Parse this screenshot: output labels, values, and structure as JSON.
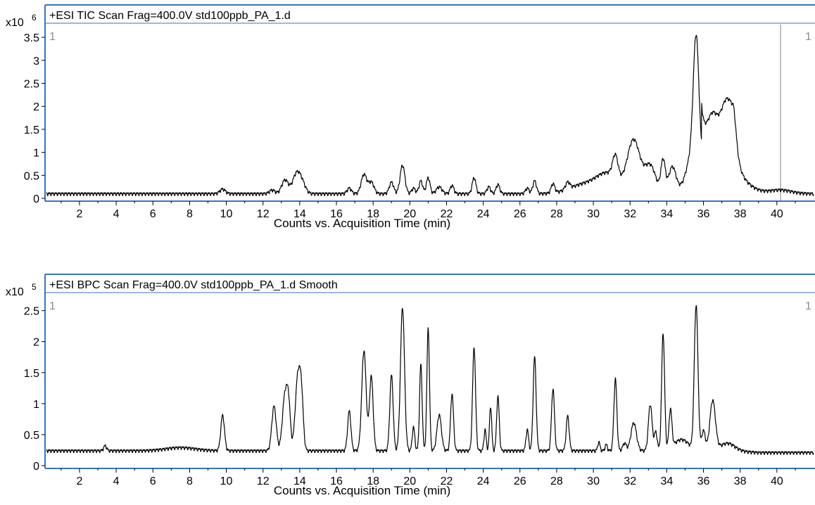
{
  "chart_data": [
    {
      "type": "line",
      "title": "+ESI TIC Scan Frag=400.0V std100ppb_PA_1.d",
      "multiplier_base": "x10",
      "multiplier_exp": "6",
      "xlabel": "Counts vs. Acquisition Time (min)",
      "ylabel": "",
      "xlim": [
        0.2,
        42.0
      ],
      "ylim": [
        0,
        3.7
      ],
      "yticks": [
        0,
        0.5,
        1,
        1.5,
        2,
        2.5,
        3,
        3.5
      ],
      "ytick_labels": [
        "0",
        "0.5",
        "1",
        "1.5",
        "2",
        "2.5",
        "3",
        "3.5"
      ],
      "xticks": [
        2,
        4,
        6,
        8,
        10,
        12,
        14,
        16,
        18,
        20,
        22,
        24,
        26,
        28,
        30,
        32,
        34,
        36,
        38,
        40
      ],
      "xtick_labels": [
        "2",
        "4",
        "6",
        "8",
        "10",
        "12",
        "14",
        "16",
        "18",
        "20",
        "22",
        "24",
        "26",
        "28",
        "30",
        "32",
        "34",
        "36",
        "38",
        "40"
      ],
      "marker_left": "1",
      "marker_right": "1",
      "cursor_x": 40.2,
      "grid": false,
      "baseline": 0.1,
      "peaks": [
        {
          "t": 9.8,
          "h": 0.1,
          "w": 0.15
        },
        {
          "t": 12.5,
          "h": 0.08,
          "w": 0.15
        },
        {
          "t": 13.2,
          "h": 0.3,
          "w": 0.18
        },
        {
          "t": 13.8,
          "h": 0.38,
          "w": 0.2
        },
        {
          "t": 14.1,
          "h": 0.25,
          "w": 0.2
        },
        {
          "t": 16.7,
          "h": 0.12,
          "w": 0.12
        },
        {
          "t": 17.5,
          "h": 0.42,
          "w": 0.15
        },
        {
          "t": 17.9,
          "h": 0.25,
          "w": 0.15
        },
        {
          "t": 19.0,
          "h": 0.25,
          "w": 0.12
        },
        {
          "t": 19.6,
          "h": 0.62,
          "w": 0.13
        },
        {
          "t": 20.2,
          "h": 0.12,
          "w": 0.1
        },
        {
          "t": 20.6,
          "h": 0.28,
          "w": 0.1
        },
        {
          "t": 21.0,
          "h": 0.35,
          "w": 0.1
        },
        {
          "t": 21.6,
          "h": 0.15,
          "w": 0.15
        },
        {
          "t": 22.3,
          "h": 0.18,
          "w": 0.1
        },
        {
          "t": 23.5,
          "h": 0.35,
          "w": 0.1
        },
        {
          "t": 24.3,
          "h": 0.15,
          "w": 0.1
        },
        {
          "t": 24.8,
          "h": 0.2,
          "w": 0.1
        },
        {
          "t": 26.4,
          "h": 0.12,
          "w": 0.1
        },
        {
          "t": 26.8,
          "h": 0.28,
          "w": 0.1
        },
        {
          "t": 27.8,
          "h": 0.2,
          "w": 0.1
        },
        {
          "t": 28.6,
          "h": 0.15,
          "w": 0.12
        },
        {
          "t": 29.5,
          "h": 0.2,
          "w": 0.8
        },
        {
          "t": 30.8,
          "h": 0.4,
          "w": 0.6
        },
        {
          "t": 31.2,
          "h": 0.5,
          "w": 0.15
        },
        {
          "t": 32.2,
          "h": 1.15,
          "w": 0.35
        },
        {
          "t": 33.1,
          "h": 0.6,
          "w": 0.3
        },
        {
          "t": 33.8,
          "h": 0.7,
          "w": 0.12
        },
        {
          "t": 34.3,
          "h": 0.55,
          "w": 0.2
        },
        {
          "t": 35.6,
          "h": 2.55,
          "w": 0.15
        },
        {
          "t": 35.4,
          "h": 0.6,
          "w": 0.3
        },
        {
          "t": 36.8,
          "h": 0.9,
          "w": 1.0
        },
        {
          "t": 37.5,
          "h": 0.5,
          "w": 0.3
        },
        {
          "t": 40.2,
          "h": 0.08,
          "w": 0.6
        }
      ],
      "plateau": {
        "start": 35.9,
        "end": 37.6,
        "value": 0.95
      }
    },
    {
      "type": "line",
      "title": "+ESI BPC Scan Frag=400.0V std100ppb_PA_1.d  Smooth",
      "multiplier_base": "x10",
      "multiplier_exp": "5",
      "xlabel": "Counts vs. Acquisition Time (min)",
      "ylabel": "",
      "xlim": [
        0.2,
        42.0
      ],
      "ylim": [
        0,
        2.7
      ],
      "yticks": [
        0,
        0.5,
        1,
        1.5,
        2,
        2.5
      ],
      "ytick_labels": [
        "0",
        "0.5",
        "1",
        "1.5",
        "2",
        "2.5"
      ],
      "xticks": [
        2,
        4,
        6,
        8,
        10,
        12,
        14,
        16,
        18,
        20,
        22,
        24,
        26,
        28,
        30,
        32,
        34,
        36,
        38,
        40
      ],
      "xtick_labels": [
        "2",
        "4",
        "6",
        "8",
        "10",
        "12",
        "14",
        "16",
        "18",
        "20",
        "22",
        "24",
        "26",
        "28",
        "30",
        "32",
        "34",
        "36",
        "38",
        "40"
      ],
      "marker_left": "1",
      "marker_right": "1",
      "grid": false,
      "baseline": 0.24,
      "peaks": [
        {
          "t": 3.4,
          "h": 0.08,
          "w": 0.08
        },
        {
          "t": 7.5,
          "h": 0.05,
          "w": 0.8
        },
        {
          "t": 9.8,
          "h": 0.57,
          "w": 0.1
        },
        {
          "t": 12.6,
          "h": 0.72,
          "w": 0.12
        },
        {
          "t": 13.2,
          "h": 0.9,
          "w": 0.14
        },
        {
          "t": 13.4,
          "h": 0.6,
          "w": 0.1
        },
        {
          "t": 13.9,
          "h": 1.2,
          "w": 0.14
        },
        {
          "t": 14.1,
          "h": 0.7,
          "w": 0.1
        },
        {
          "t": 16.7,
          "h": 0.64,
          "w": 0.09
        },
        {
          "t": 17.5,
          "h": 1.62,
          "w": 0.12
        },
        {
          "t": 17.9,
          "h": 1.2,
          "w": 0.1
        },
        {
          "t": 19.0,
          "h": 1.22,
          "w": 0.09
        },
        {
          "t": 19.6,
          "h": 2.32,
          "w": 0.11
        },
        {
          "t": 20.2,
          "h": 0.38,
          "w": 0.07
        },
        {
          "t": 20.6,
          "h": 1.4,
          "w": 0.07
        },
        {
          "t": 21.0,
          "h": 1.98,
          "w": 0.07
        },
        {
          "t": 21.6,
          "h": 0.58,
          "w": 0.12
        },
        {
          "t": 22.3,
          "h": 0.92,
          "w": 0.08
        },
        {
          "t": 23.5,
          "h": 1.68,
          "w": 0.08
        },
        {
          "t": 24.1,
          "h": 0.34,
          "w": 0.06
        },
        {
          "t": 24.4,
          "h": 0.72,
          "w": 0.06
        },
        {
          "t": 24.8,
          "h": 0.88,
          "w": 0.07
        },
        {
          "t": 26.4,
          "h": 0.34,
          "w": 0.07
        },
        {
          "t": 26.8,
          "h": 1.52,
          "w": 0.08
        },
        {
          "t": 27.8,
          "h": 1.0,
          "w": 0.08
        },
        {
          "t": 28.6,
          "h": 0.56,
          "w": 0.08
        },
        {
          "t": 30.3,
          "h": 0.14,
          "w": 0.06
        },
        {
          "t": 30.7,
          "h": 0.1,
          "w": 0.06
        },
        {
          "t": 31.2,
          "h": 1.16,
          "w": 0.08
        },
        {
          "t": 31.7,
          "h": 0.12,
          "w": 0.1
        },
        {
          "t": 32.2,
          "h": 0.45,
          "w": 0.15
        },
        {
          "t": 33.1,
          "h": 0.75,
          "w": 0.1
        },
        {
          "t": 33.4,
          "h": 0.3,
          "w": 0.08
        },
        {
          "t": 33.8,
          "h": 1.9,
          "w": 0.08
        },
        {
          "t": 34.2,
          "h": 0.62,
          "w": 0.08
        },
        {
          "t": 34.8,
          "h": 0.18,
          "w": 0.4
        },
        {
          "t": 35.6,
          "h": 2.34,
          "w": 0.1
        },
        {
          "t": 36.0,
          "h": 0.32,
          "w": 0.1
        },
        {
          "t": 36.5,
          "h": 0.8,
          "w": 0.15
        },
        {
          "t": 37.3,
          "h": 0.12,
          "w": 0.4
        }
      ],
      "tail": {
        "start": 37.5,
        "end": 39.0,
        "value": 0.21
      }
    }
  ]
}
